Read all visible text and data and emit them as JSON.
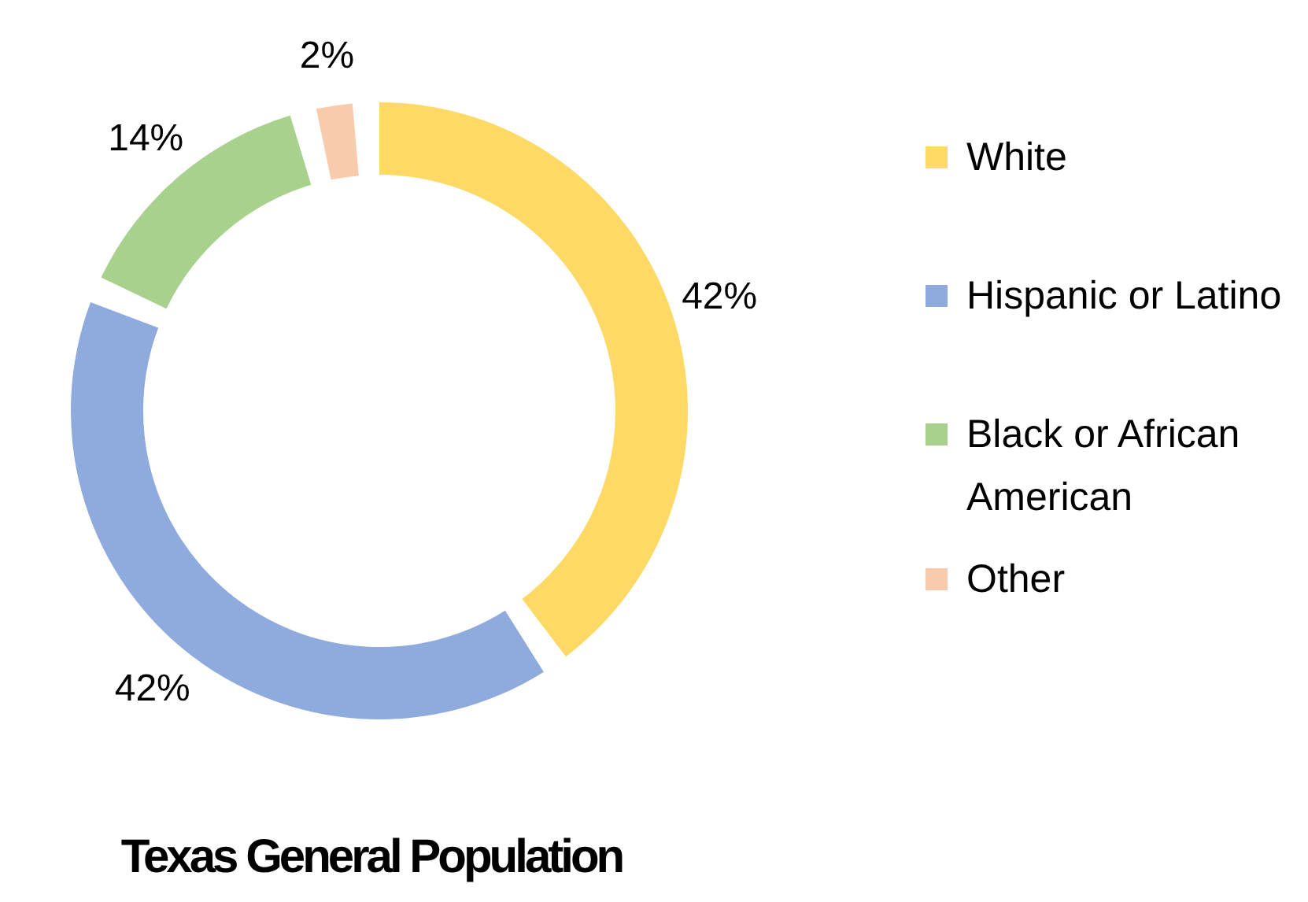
{
  "chart_data": {
    "type": "donut",
    "title": "Texas General Population",
    "categories": [
      "White",
      "Hispanic or Latino",
      "Black or African American",
      "Other"
    ],
    "values": [
      42,
      42,
      14,
      2
    ],
    "value_labels": [
      "42%",
      "42%",
      "14%",
      "2%"
    ],
    "colors": [
      "#ffd966",
      "#8faadc",
      "#a9d18e",
      "#f8cbad"
    ],
    "legend": "right"
  }
}
